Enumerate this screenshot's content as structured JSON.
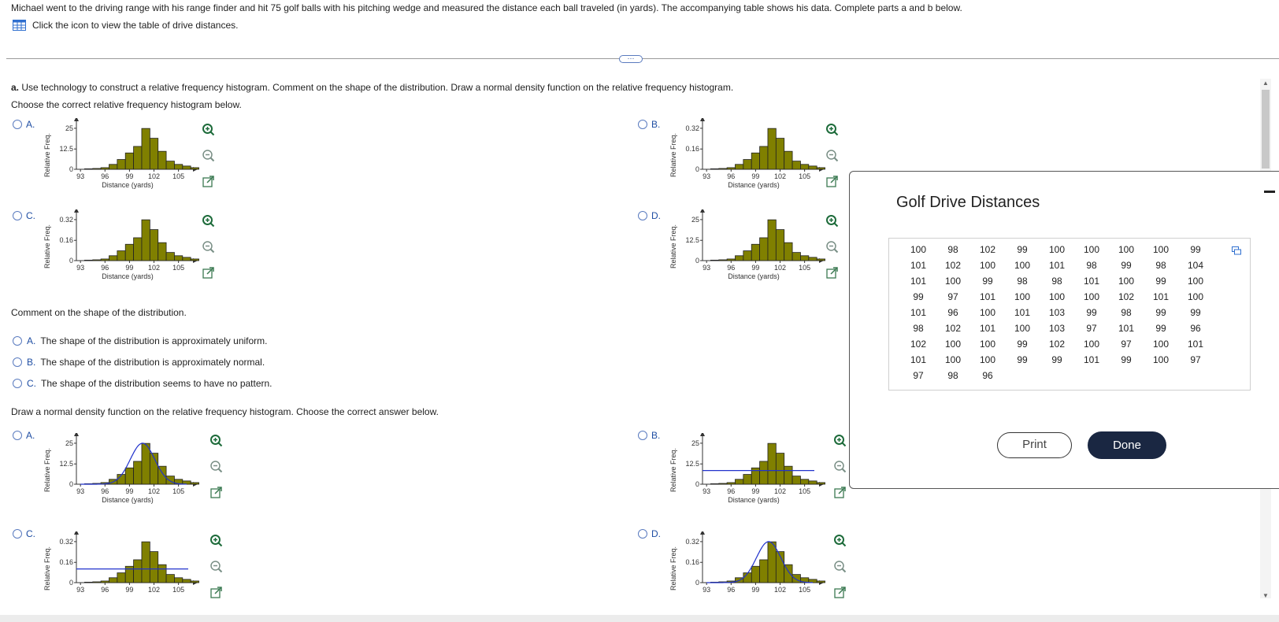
{
  "intro": "Michael went to the driving range with his range finder and hit 75 golf balls with his pitching wedge and measured the distance each ball traveled (in yards). The accompanying table shows his data. Complete parts a and b below.",
  "table_link": "Click the icon to view the table of drive distances.",
  "expand": "···",
  "part_a": {
    "label": "a.",
    "question": "Use technology to construct a relative frequency histogram. Comment on the shape of the distribution. Draw a normal density function on the relative frequency histogram.",
    "subprompt": "Choose the correct relative frequency histogram below."
  },
  "comment_question": "Comment on the shape of the distribution.",
  "shape_options": [
    {
      "letter": "A.",
      "text": "The shape of the distribution is approximately uniform."
    },
    {
      "letter": "B.",
      "text": "The shape of the distribution is approximately normal."
    },
    {
      "letter": "C.",
      "text": "The shape of the distribution seems to have no pattern."
    }
  ],
  "draw_question": "Draw a normal density function on the relative frequency histogram. Choose the correct answer below.",
  "icons": {
    "zoom_in": "zoom-in-icon",
    "zoom_out": "zoom-out-icon",
    "open_external": "external-link-icon",
    "table": "table-icon",
    "copy": "copy-icon"
  },
  "colors": {
    "bar_fill": "#808000",
    "curve": "#2233cc",
    "option_letter": "#1f4ea3",
    "done_bg": "#1a2742"
  },
  "chart_data": [
    {
      "id": "hist-A",
      "type": "bar",
      "option": "A.",
      "ylabel": "Relative Freq.",
      "xlabel": "Distance (yards)",
      "yticks": [
        "0",
        "12.5",
        "25"
      ],
      "xticks": [
        "93",
        "96",
        "99",
        "102",
        "105"
      ],
      "bins_start": 94,
      "bin_width": 1,
      "values": [
        0.3,
        0.5,
        1,
        3,
        6,
        10,
        14,
        25,
        19,
        11,
        5,
        3,
        2,
        1
      ],
      "ymax": 27,
      "overlay": "none"
    },
    {
      "id": "hist-B",
      "type": "bar",
      "option": "B.",
      "ylabel": "Relative Freq.",
      "xlabel": "Distance (yards)",
      "yticks": [
        "0",
        "0.16",
        "0.32"
      ],
      "xticks": [
        "93",
        "96",
        "99",
        "102",
        "105"
      ],
      "bins_start": 94,
      "bin_width": 1,
      "values": [
        0.3,
        0.5,
        1,
        3,
        6,
        10,
        14,
        25,
        19,
        11,
        5,
        3,
        2,
        1
      ],
      "ymax": 27,
      "overlay": "none"
    },
    {
      "id": "hist-C",
      "type": "bar",
      "option": "C.",
      "ylabel": "Relative Freq.",
      "xlabel": "Distance (yards)",
      "yticks": [
        "0",
        "0.16",
        "0.32"
      ],
      "xticks": [
        "93",
        "96",
        "99",
        "102",
        "105"
      ],
      "bins_start": 94,
      "bin_width": 1,
      "values": [
        0.3,
        0.5,
        1,
        3,
        6,
        10,
        14,
        25,
        19,
        11,
        5,
        3,
        2,
        1
      ],
      "ymax": 27,
      "overlay": "none"
    },
    {
      "id": "hist-D",
      "type": "bar",
      "option": "D.",
      "ylabel": "Relative Freq.",
      "xlabel": "Distance (yards)",
      "yticks": [
        "0",
        "12.5",
        "25"
      ],
      "xticks": [
        "93",
        "96",
        "99",
        "102",
        "105"
      ],
      "bins_start": 94,
      "bin_width": 1,
      "values": [
        0.3,
        0.5,
        1,
        3,
        6,
        10,
        14,
        25,
        19,
        11,
        5,
        3,
        2,
        1
      ],
      "ymax": 27,
      "overlay": "none"
    },
    {
      "id": "curve-A",
      "type": "bar",
      "option": "A.",
      "ylabel": "Relative Freq.",
      "xlabel": "Distance (yards)",
      "yticks": [
        "0",
        "12.5",
        "25"
      ],
      "xticks": [
        "93",
        "96",
        "99",
        "102",
        "105"
      ],
      "bins_start": 94,
      "bin_width": 1,
      "values": [
        0.3,
        0.5,
        1,
        3,
        6,
        10,
        14,
        25,
        19,
        11,
        5,
        3,
        2,
        1
      ],
      "ymax": 27,
      "overlay": "normal"
    },
    {
      "id": "curve-B",
      "type": "bar",
      "option": "B.",
      "ylabel": "Relative Freq.",
      "xlabel": "Distance (yards)",
      "yticks": [
        "0",
        "12.5",
        "25"
      ],
      "xticks": [
        "93",
        "96",
        "99",
        "102",
        "105"
      ],
      "bins_start": 94,
      "bin_width": 1,
      "values": [
        0.3,
        0.5,
        1,
        3,
        6,
        10,
        14,
        25,
        19,
        11,
        5,
        3,
        2,
        1
      ],
      "ymax": 27,
      "overlay": "flat"
    },
    {
      "id": "curve-C",
      "type": "bar",
      "option": "C.",
      "ylabel": "Relative Freq.",
      "xlabel": "",
      "yticks": [
        "0",
        "0.16",
        "0.32"
      ],
      "xticks": [
        "93",
        "96",
        "99",
        "102",
        "105"
      ],
      "bins_start": 94,
      "bin_width": 1,
      "values": [
        0.3,
        0.5,
        1,
        3,
        6,
        10,
        14,
        25,
        19,
        11,
        5,
        3,
        2,
        1
      ],
      "ymax": 27,
      "overlay": "flat"
    },
    {
      "id": "curve-D",
      "type": "bar",
      "option": "D.",
      "ylabel": "Relative Freq.",
      "xlabel": "",
      "yticks": [
        "0",
        "0.16",
        "0.32"
      ],
      "xticks": [
        "93",
        "96",
        "99",
        "102",
        "105"
      ],
      "bins_start": 94,
      "bin_width": 1,
      "values": [
        0.3,
        0.5,
        1,
        3,
        6,
        10,
        14,
        25,
        19,
        11,
        5,
        3,
        2,
        1
      ],
      "ymax": 27,
      "overlay": "normal"
    }
  ],
  "popup": {
    "title": "Golf Drive Distances",
    "table": [
      [
        "100",
        "98",
        "102",
        "99",
        "100",
        "100",
        "100",
        "100",
        "99"
      ],
      [
        "101",
        "102",
        "100",
        "100",
        "101",
        "98",
        "99",
        "98",
        "104"
      ],
      [
        "101",
        "100",
        "99",
        "98",
        "98",
        "101",
        "100",
        "99",
        "100"
      ],
      [
        "99",
        "97",
        "101",
        "100",
        "100",
        "100",
        "102",
        "101",
        "100"
      ],
      [
        "101",
        "96",
        "100",
        "101",
        "103",
        "99",
        "98",
        "99",
        "99"
      ],
      [
        "98",
        "102",
        "101",
        "100",
        "103",
        "97",
        "101",
        "99",
        "96"
      ],
      [
        "102",
        "100",
        "100",
        "99",
        "102",
        "100",
        "97",
        "100",
        "101"
      ],
      [
        "101",
        "100",
        "100",
        "99",
        "99",
        "101",
        "99",
        "100",
        "97"
      ],
      [
        "97",
        "98",
        "96"
      ]
    ],
    "print_label": "Print",
    "done_label": "Done"
  }
}
